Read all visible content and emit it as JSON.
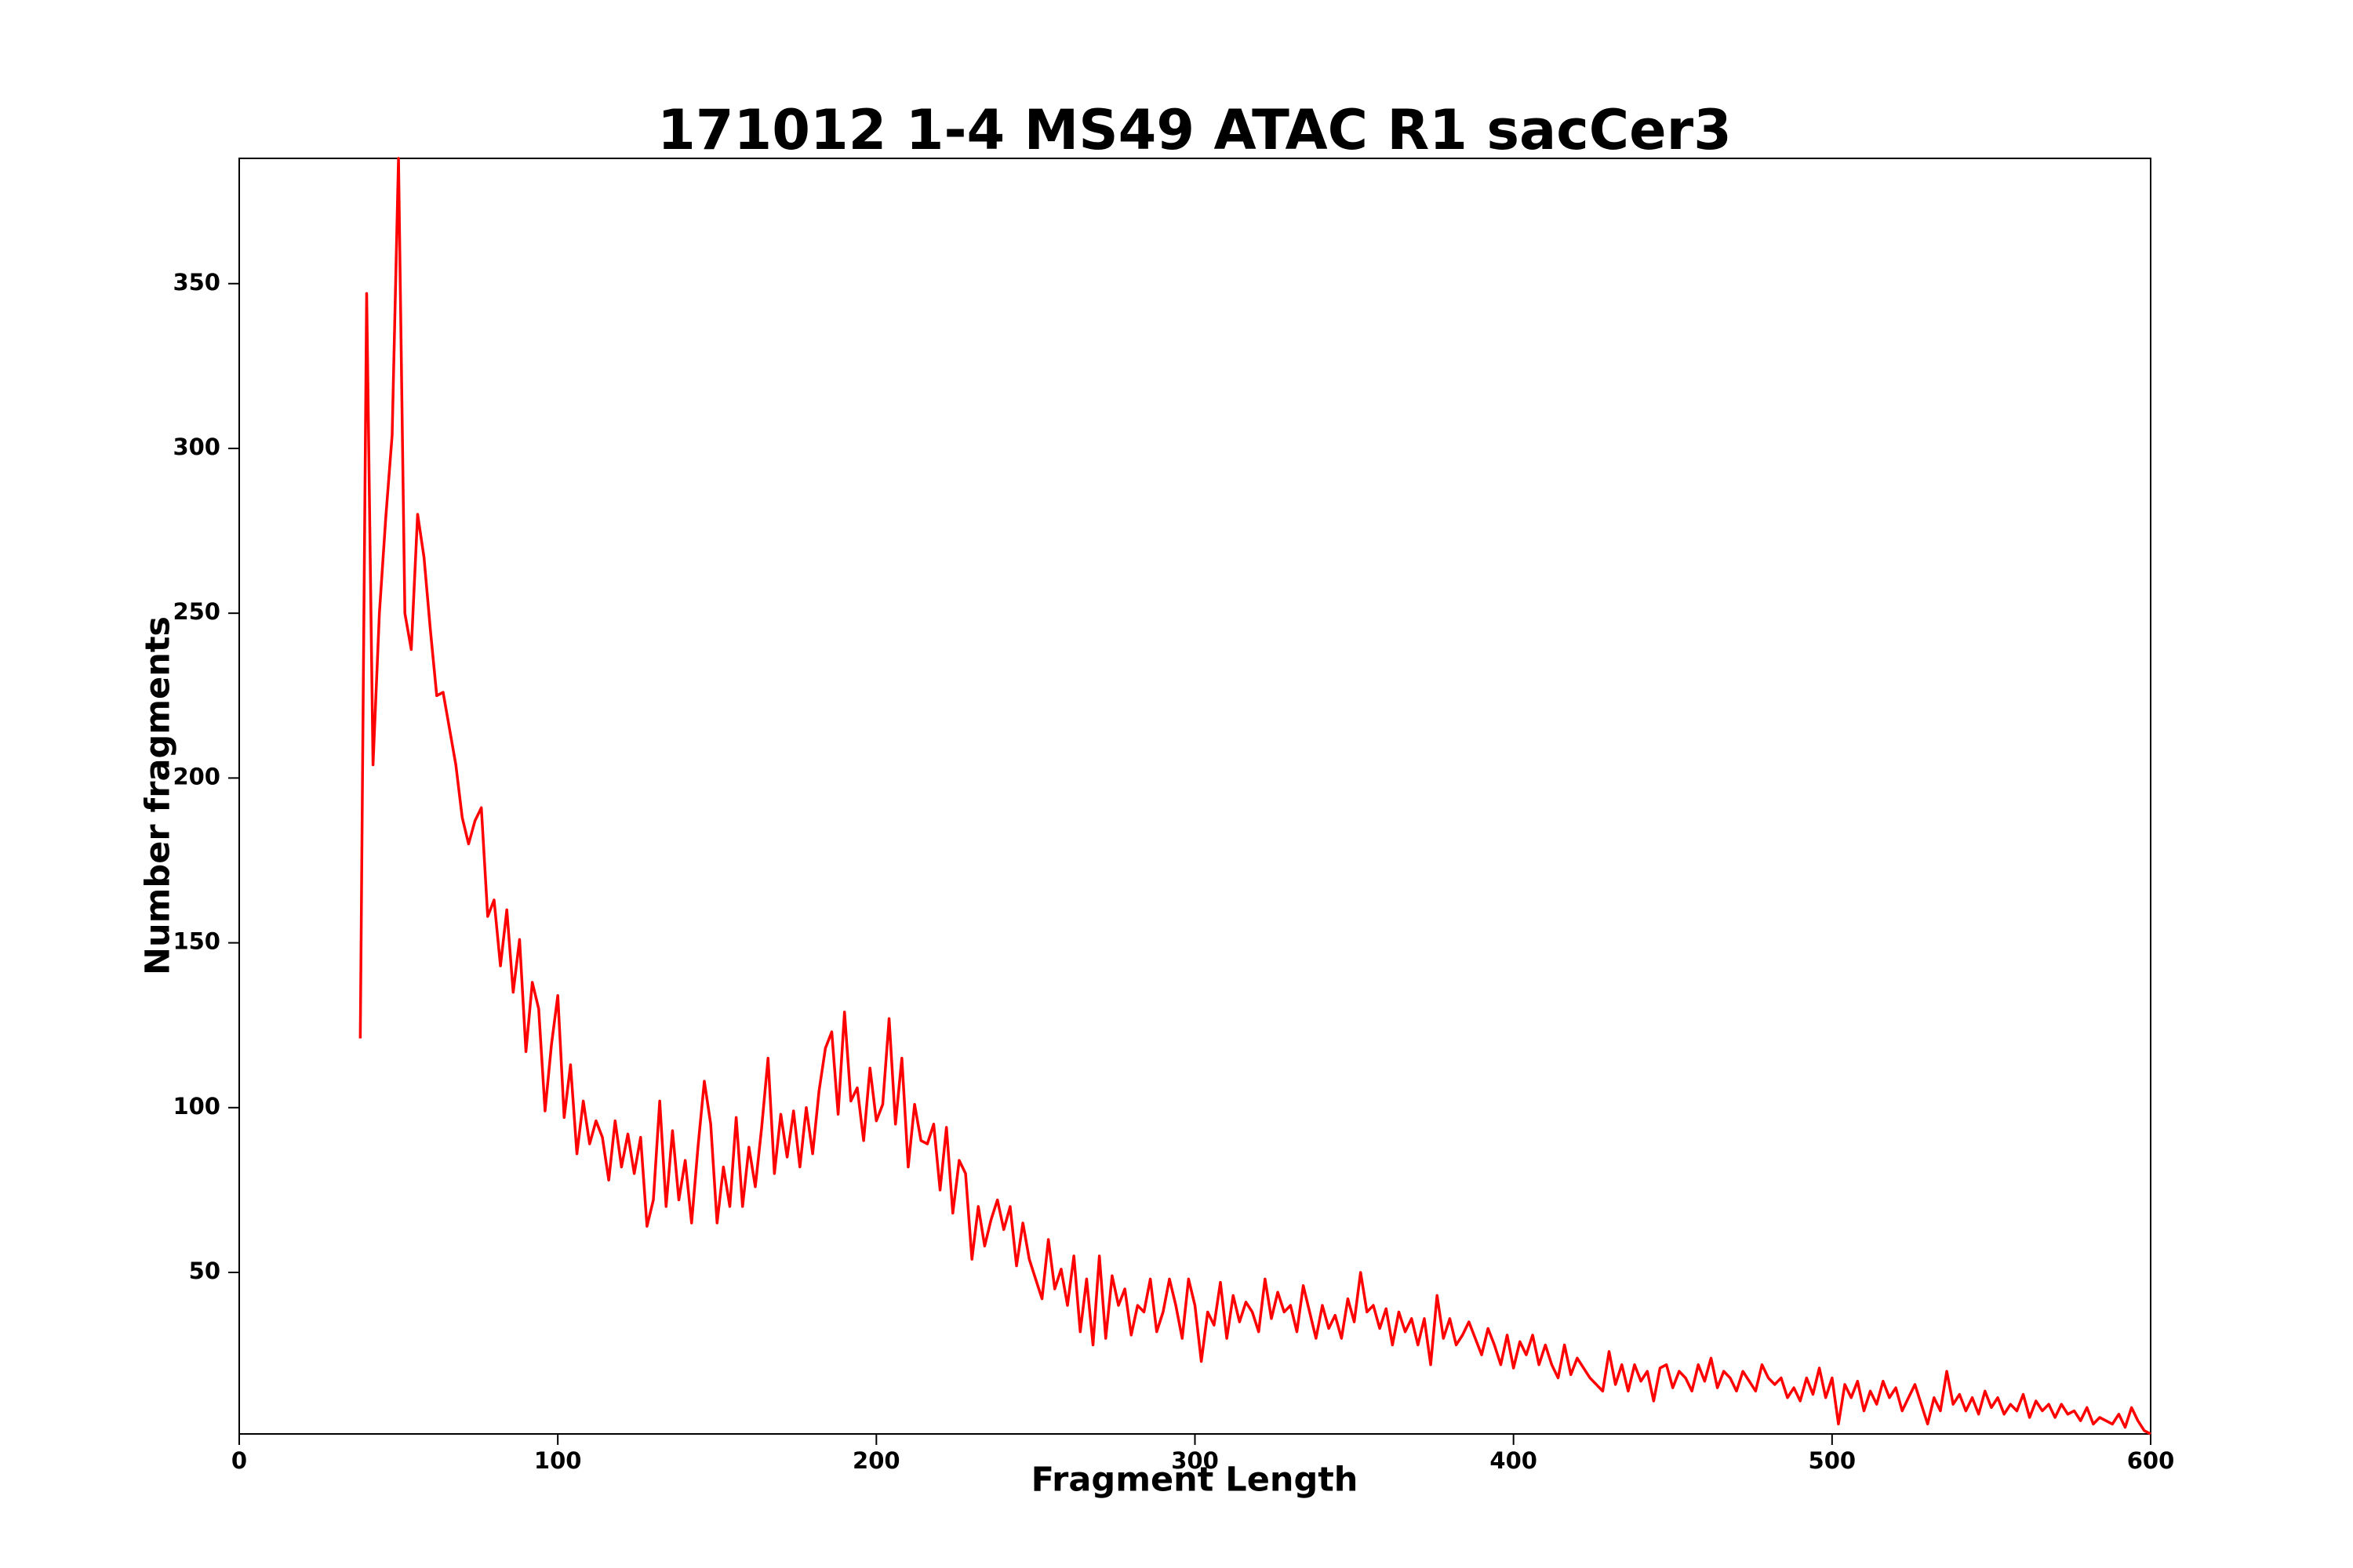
{
  "chart_data": {
    "type": "line",
    "title": "171012 1-4 MS49 ATAC R1 sacCer3",
    "xlabel": "Fragment Length",
    "ylabel": "Number fragments",
    "xlim": [
      0,
      600
    ],
    "ylim": [
      1,
      388
    ],
    "xticks": [
      0,
      100,
      200,
      300,
      400,
      500,
      600
    ],
    "yticks": [
      50,
      100,
      150,
      200,
      250,
      300,
      350
    ],
    "grid": false,
    "x": [
      38,
      40,
      42,
      44,
      46,
      48,
      50,
      52,
      54,
      56,
      58,
      60,
      62,
      64,
      66,
      68,
      70,
      72,
      74,
      76,
      78,
      80,
      82,
      84,
      86,
      88,
      90,
      92,
      94,
      96,
      98,
      100,
      102,
      104,
      106,
      108,
      110,
      112,
      114,
      116,
      118,
      120,
      122,
      124,
      126,
      128,
      130,
      132,
      134,
      136,
      138,
      140,
      142,
      144,
      146,
      148,
      150,
      152,
      154,
      156,
      158,
      160,
      162,
      164,
      166,
      168,
      170,
      172,
      174,
      176,
      178,
      180,
      182,
      184,
      186,
      188,
      190,
      192,
      194,
      196,
      198,
      200,
      202,
      204,
      206,
      208,
      210,
      212,
      214,
      216,
      218,
      220,
      222,
      224,
      226,
      228,
      230,
      232,
      234,
      236,
      238,
      240,
      242,
      244,
      246,
      248,
      250,
      252,
      254,
      256,
      258,
      260,
      262,
      264,
      266,
      268,
      270,
      272,
      274,
      276,
      278,
      280,
      282,
      284,
      286,
      288,
      290,
      292,
      294,
      296,
      298,
      300,
      302,
      304,
      306,
      308,
      310,
      312,
      314,
      316,
      318,
      320,
      322,
      324,
      326,
      328,
      330,
      332,
      334,
      336,
      338,
      340,
      342,
      344,
      346,
      348,
      350,
      352,
      354,
      356,
      358,
      360,
      362,
      364,
      366,
      368,
      370,
      372,
      374,
      376,
      378,
      380,
      382,
      384,
      386,
      388,
      390,
      392,
      394,
      396,
      398,
      400,
      402,
      404,
      406,
      408,
      410,
      412,
      414,
      416,
      418,
      420,
      422,
      424,
      426,
      428,
      430,
      432,
      434,
      436,
      438,
      440,
      442,
      444,
      446,
      448,
      450,
      452,
      454,
      456,
      458,
      460,
      462,
      464,
      466,
      468,
      470,
      472,
      474,
      476,
      478,
      480,
      482,
      484,
      486,
      488,
      490,
      492,
      494,
      496,
      498,
      500,
      502,
      504,
      506,
      508,
      510,
      512,
      514,
      516,
      518,
      520,
      522,
      524,
      526,
      528,
      530,
      532,
      534,
      536,
      538,
      540,
      542,
      544,
      546,
      548,
      550,
      552,
      554,
      556,
      558,
      560,
      562,
      564,
      566,
      568,
      570,
      572,
      574,
      576,
      578,
      580,
      582,
      584,
      586,
      588,
      590,
      592,
      594,
      596,
      598,
      600
    ],
    "series": [
      {
        "name": "fragments",
        "color": "#ff0000",
        "values": [
          121,
          347,
          204,
          250,
          279,
          304,
          388,
          250,
          239,
          280,
          267,
          245,
          225,
          226,
          215,
          204,
          188,
          180,
          187,
          191,
          158,
          163,
          143,
          160,
          135,
          151,
          117,
          138,
          130,
          99,
          119,
          134,
          97,
          113,
          86,
          102,
          89,
          96,
          91,
          78,
          96,
          82,
          92,
          80,
          91,
          64,
          72,
          102,
          70,
          93,
          72,
          84,
          65,
          88,
          108,
          95,
          65,
          82,
          70,
          97,
          70,
          88,
          76,
          94,
          115,
          80,
          98,
          85,
          99,
          82,
          100,
          86,
          105,
          118,
          123,
          98,
          129,
          102,
          106,
          90,
          112,
          96,
          101,
          127,
          95,
          115,
          82,
          101,
          90,
          89,
          95,
          75,
          94,
          68,
          84,
          80,
          54,
          70,
          58,
          66,
          72,
          63,
          70,
          52,
          65,
          54,
          48,
          42,
          60,
          45,
          51,
          40,
          55,
          32,
          48,
          28,
          55,
          30,
          49,
          40,
          45,
          31,
          40,
          38,
          48,
          32,
          38,
          48,
          40,
          30,
          48,
          40,
          23,
          38,
          34,
          47,
          30,
          43,
          35,
          41,
          38,
          32,
          48,
          36,
          44,
          38,
          40,
          32,
          46,
          38,
          30,
          40,
          33,
          37,
          30,
          42,
          35,
          50,
          38,
          40,
          33,
          39,
          28,
          38,
          32,
          36,
          28,
          36,
          22,
          43,
          30,
          36,
          28,
          31,
          35,
          30,
          25,
          33,
          28,
          22,
          31,
          21,
          29,
          25,
          31,
          22,
          28,
          22,
          18,
          28,
          19,
          24,
          21,
          18,
          16,
          14,
          26,
          16,
          22,
          14,
          22,
          17,
          20,
          11,
          21,
          22,
          15,
          20,
          18,
          14,
          22,
          17,
          24,
          15,
          20,
          18,
          14,
          20,
          17,
          14,
          22,
          18,
          16,
          18,
          12,
          15,
          11,
          18,
          13,
          21,
          12,
          18,
          4,
          16,
          12,
          17,
          8,
          14,
          10,
          17,
          12,
          15,
          8,
          12,
          16,
          10,
          4,
          12,
          8,
          20,
          10,
          13,
          8,
          12,
          7,
          14,
          9,
          12,
          7,
          10,
          8,
          13,
          6,
          11,
          8,
          10,
          6,
          10,
          7,
          8,
          5,
          9,
          4,
          6,
          5,
          4,
          7,
          3,
          9,
          5,
          2,
          1
        ]
      }
    ]
  }
}
